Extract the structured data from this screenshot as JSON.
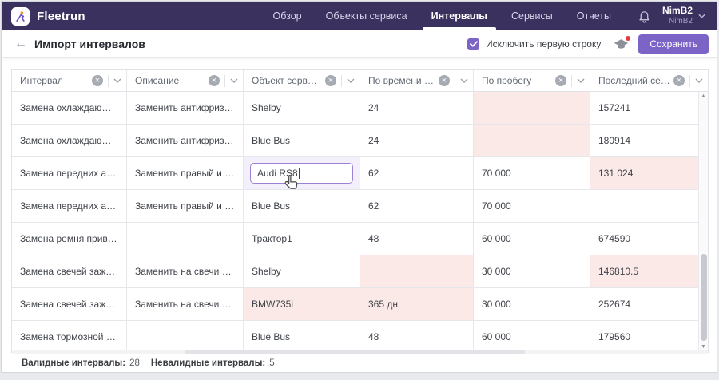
{
  "header": {
    "brand": "Fleetrun",
    "nav": [
      {
        "label": "Обзор",
        "active": false
      },
      {
        "label": "Объекты сервиса",
        "active": false
      },
      {
        "label": "Интервалы",
        "active": true
      },
      {
        "label": "Сервисы",
        "active": false
      },
      {
        "label": "Отчеты",
        "active": false
      }
    ],
    "user": {
      "name": "NimB2",
      "account": "NimB2"
    }
  },
  "toolbar": {
    "back_icon": "←",
    "title": "Импорт интервалов",
    "checkbox_label": "Исключить первую строку",
    "checkbox_checked": true,
    "save_label": "Сохранить"
  },
  "table": {
    "columns": [
      {
        "label": "Интервал"
      },
      {
        "label": "Описание"
      },
      {
        "label": "Объект сервиса"
      },
      {
        "label": "По времени (недели)"
      },
      {
        "label": "По пробегу"
      },
      {
        "label": "Последний сервис (п…"
      }
    ],
    "rows": [
      {
        "cells": [
          {
            "text": "Замена охлаждающей жидк…"
          },
          {
            "text": "Заменить антифриз, осмотр…"
          },
          {
            "text": "Shelby"
          },
          {
            "text": "24"
          },
          {
            "text": "",
            "invalid": true
          },
          {
            "text": "157241"
          }
        ]
      },
      {
        "cells": [
          {
            "text": "Замена охлаждающей жидк…"
          },
          {
            "text": "Заменить антифриз, осморт…"
          },
          {
            "text": "Blue Bus"
          },
          {
            "text": "24"
          },
          {
            "text": "",
            "invalid": true
          },
          {
            "text": "180914"
          }
        ]
      },
      {
        "cells": [
          {
            "text": "Замена передних амортизат…"
          },
          {
            "text": "Заменить правый и левый п…"
          },
          {
            "text": "Audi RS8",
            "editing": true
          },
          {
            "text": "62"
          },
          {
            "text": "70 000"
          },
          {
            "text": "131 024",
            "invalid": true
          }
        ]
      },
      {
        "cells": [
          {
            "text": "Замена передних амортизат…"
          },
          {
            "text": "Заменить правый и левый п…"
          },
          {
            "text": "Blue Bus"
          },
          {
            "text": "62"
          },
          {
            "text": "70 000"
          },
          {
            "text": ""
          }
        ]
      },
      {
        "cells": [
          {
            "text": "Замена ремня привода вспо…"
          },
          {
            "text": ""
          },
          {
            "text": "Трактор1"
          },
          {
            "text": "48"
          },
          {
            "text": "60 000"
          },
          {
            "text": "674590"
          }
        ]
      },
      {
        "cells": [
          {
            "text": "Замена свечей зажигания"
          },
          {
            "text": "Заменить на свечи с платин…"
          },
          {
            "text": "Shelby"
          },
          {
            "text": "",
            "invalid": true
          },
          {
            "text": "30 000"
          },
          {
            "text": "146810.5",
            "invalid": true
          }
        ]
      },
      {
        "cells": [
          {
            "text": "Замена свечей зажигания"
          },
          {
            "text": "Заменить на свечи с платин…"
          },
          {
            "text": "BMW735i",
            "invalid": true
          },
          {
            "text": "365 дн.",
            "invalid": true
          },
          {
            "text": "30 000"
          },
          {
            "text": "252674"
          }
        ]
      },
      {
        "cells": [
          {
            "text": "Замена тормозной жидкости"
          },
          {
            "text": ""
          },
          {
            "text": "Blue Bus"
          },
          {
            "text": "48"
          },
          {
            "text": "60 000"
          },
          {
            "text": "179560"
          }
        ]
      }
    ]
  },
  "footer": {
    "valid_label": "Валидные интервалы:",
    "valid_value": "28",
    "invalid_label": "Невалидные интервалы:",
    "invalid_value": "5"
  },
  "colors": {
    "topbar": "#3a315f",
    "accent_purple": "#7c64c6",
    "invalid_pink": "#fbe9e8",
    "editing_lavender": "#f3effb",
    "notification_red": "#e5393f"
  }
}
